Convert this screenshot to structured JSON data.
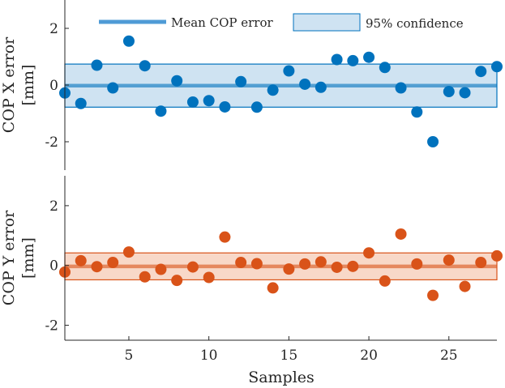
{
  "chart_data": {
    "type": "scatter",
    "xlabel": "Samples",
    "x": [
      1,
      2,
      3,
      4,
      5,
      6,
      7,
      8,
      9,
      10,
      11,
      12,
      13,
      14,
      15,
      16,
      17,
      18,
      19,
      20,
      21,
      22,
      23,
      24,
      25,
      26,
      27,
      28
    ],
    "xlim": [
      1,
      28
    ],
    "xticks": [
      5,
      10,
      15,
      20,
      25
    ],
    "legend": {
      "placement": "top",
      "entries": [
        "Mean COP error",
        "95% confidence"
      ]
    },
    "panels": [
      {
        "name": "x",
        "ylabel_line1": "COP X error",
        "ylabel_line2": "[mm]",
        "ylim": [
          -3,
          3
        ],
        "yticks": [
          2,
          0,
          -2
        ],
        "ytick_labels": [
          "2",
          "0",
          "-2"
        ],
        "color": "#0072BD",
        "band_fill": "#cfe3f2",
        "mean": -0.02,
        "ci": [
          -0.78,
          0.74
        ],
        "values": [
          -0.28,
          -0.65,
          0.7,
          -0.1,
          1.55,
          0.68,
          -0.92,
          0.15,
          -0.6,
          -0.55,
          -0.77,
          0.12,
          -0.78,
          -0.18,
          0.5,
          0.03,
          -0.08,
          0.9,
          0.86,
          0.98,
          0.62,
          -0.1,
          -0.95,
          -2.0,
          -0.23,
          -0.27,
          0.48,
          0.65
        ]
      },
      {
        "name": "y",
        "ylabel_line1": "COP Y error",
        "ylabel_line2": "[mm]",
        "ylim": [
          -2.5,
          3
        ],
        "yticks": [
          2,
          0,
          -2
        ],
        "ytick_labels": [
          "2",
          "0",
          "-2"
        ],
        "color": "#D95319",
        "band_fill": "#f8d8c8",
        "mean": -0.03,
        "ci": [
          -0.48,
          0.42
        ],
        "values": [
          -0.22,
          0.16,
          -0.04,
          0.1,
          0.45,
          -0.38,
          -0.13,
          -0.5,
          -0.05,
          -0.4,
          0.95,
          0.1,
          0.06,
          -0.75,
          -0.12,
          0.05,
          0.12,
          -0.06,
          -0.03,
          0.42,
          -0.52,
          1.05,
          0.05,
          -1.0,
          0.18,
          -0.7,
          0.1,
          0.32
        ]
      }
    ]
  }
}
